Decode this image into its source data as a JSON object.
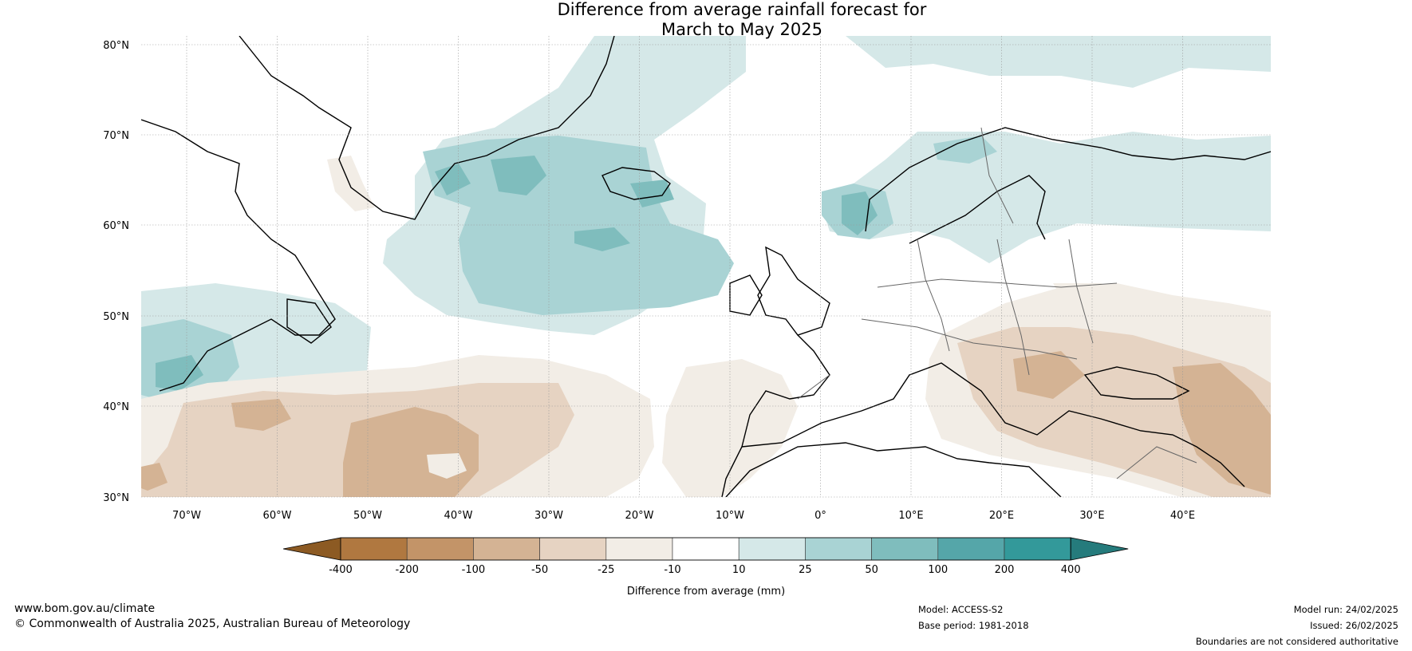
{
  "title_line1": "Difference from average rainfall forecast for",
  "title_line2": "March to May 2025",
  "map": {
    "lat_labels": [
      "80°N",
      "70°N",
      "60°N",
      "50°N",
      "40°N",
      "30°N"
    ],
    "lon_labels": [
      "70°W",
      "60°W",
      "50°W",
      "40°W",
      "30°W",
      "20°W",
      "10°W",
      "0°",
      "10°E",
      "20°E",
      "30°E",
      "40°E"
    ]
  },
  "colorbar": {
    "ticks": [
      "-400",
      "-200",
      "-100",
      "-50",
      "-25",
      "-10",
      "10",
      "25",
      "50",
      "100",
      "200",
      "400"
    ],
    "colors": [
      "#8c5a23",
      "#b07840",
      "#c39468",
      "#d4b394",
      "#e6d3c2",
      "#f2ede6",
      "#ffffff",
      "#d5e8e8",
      "#a9d3d4",
      "#7fbdbd",
      "#55a6a9",
      "#33999a",
      "#257b7c"
    ],
    "label": "Difference from average (mm)"
  },
  "footer": {
    "website": "www.bom.gov.au/climate",
    "copyright": "© Commonwealth of Australia 2025, Australian Bureau of Meteorology",
    "model": "Model: ACCESS-S2",
    "base_period": "Base period: 1981-2018",
    "model_run": "Model run: 24/02/2025",
    "issued": "Issued: 26/02/2025",
    "disclaimer": "Boundaries are not considered authoritative"
  }
}
